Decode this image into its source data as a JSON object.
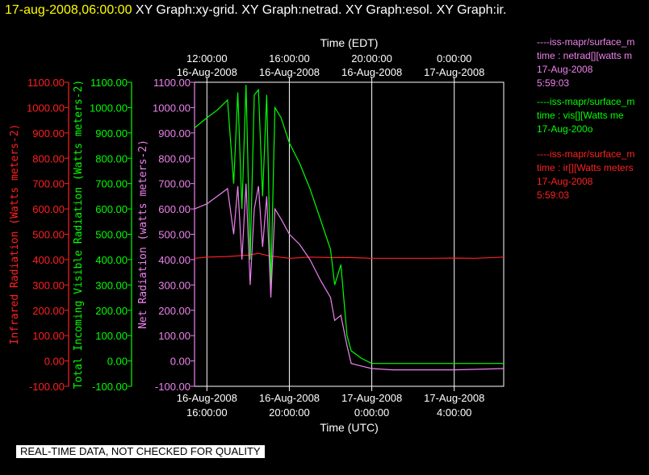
{
  "header": {
    "timestamp": "17-aug-2008,06:00:00",
    "graphs": "XY Graph:xy-grid.  XY Graph:netrad.  XY Graph:esol.  XY Graph:ir."
  },
  "colors": {
    "ir": "#ff2020",
    "vis": "#00ff00",
    "net": "#ee82ee",
    "white": "#ffffff"
  },
  "legend": [
    {
      "color": "#ee82ee",
      "lines": [
        "----iss-mapr/surface_m",
        "time : netrad[][watts m",
        "17-Aug-2008",
        "5:59:03"
      ]
    },
    {
      "color": "#00ff00",
      "lines": [
        "----iss-mapr/surface_m",
        "time : vis[][Watts me",
        "17-Aug-200o"
      ]
    },
    {
      "color": "#ff2020",
      "lines": [
        "----iss-mapr/surface_m",
        "time : ir[][Watts meters",
        "17-Aug-2008",
        "5:59:03"
      ]
    }
  ],
  "quality_note": "REAL-TIME DATA, NOT CHECKED FOR QUALITY",
  "chart_data": {
    "type": "line",
    "y_ticks": [
      "1100.00",
      "1000.00",
      "900.00",
      "800.00",
      "700.00",
      "600.00",
      "500.00",
      "400.00",
      "300.00",
      "200.00",
      "100.00",
      "0.00",
      "-100.00"
    ],
    "ylim": [
      -100,
      1100
    ],
    "xlim_hours_utc": [
      15.4,
      30.4
    ],
    "top_axis": {
      "title": "Time (EDT)",
      "ticks": [
        {
          "time": "12:00:00",
          "date": "16-Aug-2008"
        },
        {
          "time": "16:00:00",
          "date": "16-Aug-2008"
        },
        {
          "time": "20:00:00",
          "date": "16-Aug-2008"
        },
        {
          "time": "0:00:00",
          "date": "17-Aug-2008"
        }
      ]
    },
    "bottom_axis": {
      "title": "Time (UTC)",
      "ticks": [
        {
          "date": "16-Aug-2008",
          "time": "16:00:00"
        },
        {
          "date": "16-Aug-2008",
          "time": "20:00:00"
        },
        {
          "date": "17-Aug-2008",
          "time": "0:00:00"
        },
        {
          "date": "17-Aug-2008",
          "time": "4:00:00"
        }
      ]
    },
    "tick_hours_utc": [
      16,
      20,
      24,
      28
    ],
    "ylabels": {
      "ir": "Infrared Radiation (Watts meters-2)",
      "vis": "Total Incoming Visible Radiation (Watts meters-2)",
      "net": "Net Radiation (watts meters-2)"
    },
    "series": [
      {
        "key": "ir",
        "color": "#ff2020",
        "x": [
          15.4,
          16.0,
          17.0,
          18.0,
          18.5,
          19.0,
          20.0,
          21.0,
          22.0,
          23.0,
          24.0,
          25.0,
          26.0,
          27.0,
          28.0,
          29.0,
          30.4
        ],
        "y": [
          405,
          410,
          412,
          418,
          425,
          415,
          405,
          410,
          408,
          408,
          405,
          405,
          405,
          405,
          406,
          405,
          410
        ]
      },
      {
        "key": "vis",
        "color": "#00ff00",
        "x": [
          15.4,
          16.0,
          16.5,
          17.0,
          17.3,
          17.5,
          17.7,
          17.9,
          18.1,
          18.3,
          18.5,
          18.7,
          18.9,
          19.1,
          19.3,
          19.6,
          20.0,
          20.5,
          21.0,
          21.5,
          22.0,
          22.2,
          22.5,
          22.8,
          23.0,
          23.5,
          24.0,
          25.0,
          26.0,
          27.0,
          28.0,
          29.0,
          30.4
        ],
        "y": [
          920,
          960,
          990,
          1030,
          700,
          1060,
          600,
          1090,
          400,
          1050,
          1070,
          650,
          1050,
          300,
          1000,
          960,
          860,
          780,
          680,
          560,
          440,
          300,
          380,
          100,
          40,
          10,
          -10,
          -10,
          -10,
          -10,
          -10,
          -10,
          -10
        ]
      },
      {
        "key": "net",
        "color": "#ee82ee",
        "x": [
          15.4,
          16.0,
          16.5,
          17.0,
          17.3,
          17.5,
          17.7,
          17.9,
          18.1,
          18.3,
          18.5,
          18.7,
          18.9,
          19.1,
          19.3,
          19.6,
          20.0,
          20.5,
          21.0,
          21.5,
          22.0,
          22.2,
          22.5,
          22.8,
          23.0,
          23.5,
          24.0,
          25.0,
          26.0,
          27.0,
          28.0,
          29.0,
          30.4
        ],
        "y": [
          600,
          620,
          650,
          680,
          500,
          690,
          400,
          700,
          300,
          600,
          690,
          450,
          650,
          250,
          600,
          560,
          500,
          460,
          400,
          320,
          250,
          160,
          180,
          60,
          -10,
          -20,
          -30,
          -35,
          -35,
          -35,
          -35,
          -33,
          -30
        ]
      }
    ]
  }
}
